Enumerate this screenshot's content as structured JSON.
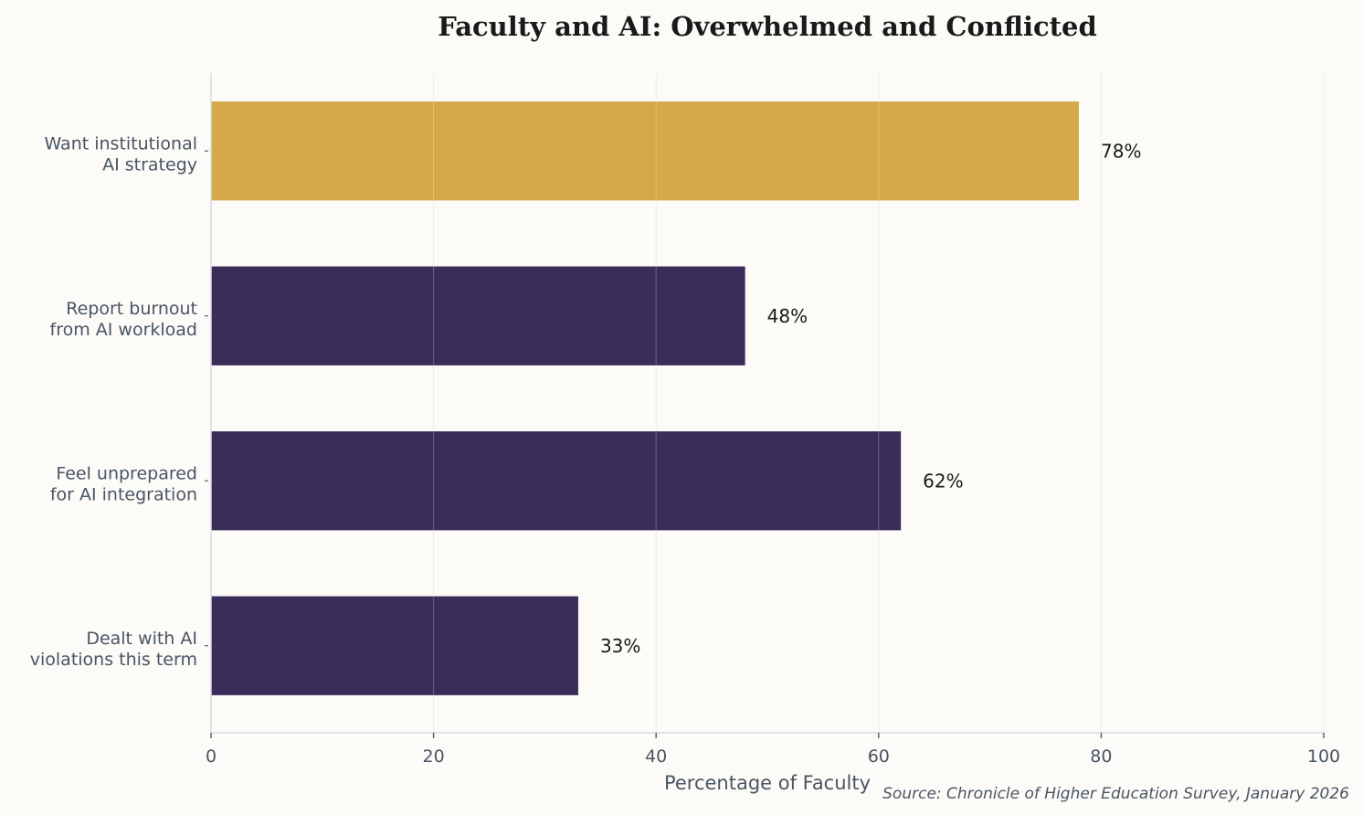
{
  "chart_data": {
    "type": "bar",
    "orientation": "horizontal",
    "title": "Faculty and AI: Overwhelmed and Conflicted",
    "xlabel": "Percentage of Faculty",
    "ylabel": "",
    "xlim": [
      0,
      100
    ],
    "xticks": [
      0,
      20,
      40,
      60,
      80,
      100
    ],
    "grid": true,
    "categories": [
      [
        "Want institutional",
        "AI strategy"
      ],
      [
        "Report burnout",
        "from AI workload"
      ],
      [
        "Feel unprepared",
        "for AI integration"
      ],
      [
        "Dealt with AI",
        "violations this term"
      ]
    ],
    "values": [
      78,
      48,
      62,
      33
    ],
    "data_labels": [
      "78%",
      "48%",
      "62%",
      "33%"
    ],
    "colors": [
      "#d5a84a",
      "#3b2d5a",
      "#3b2d5a",
      "#3b2d5a"
    ],
    "source": "Source: Chronicle of Higher Education Survey, January 2026"
  }
}
